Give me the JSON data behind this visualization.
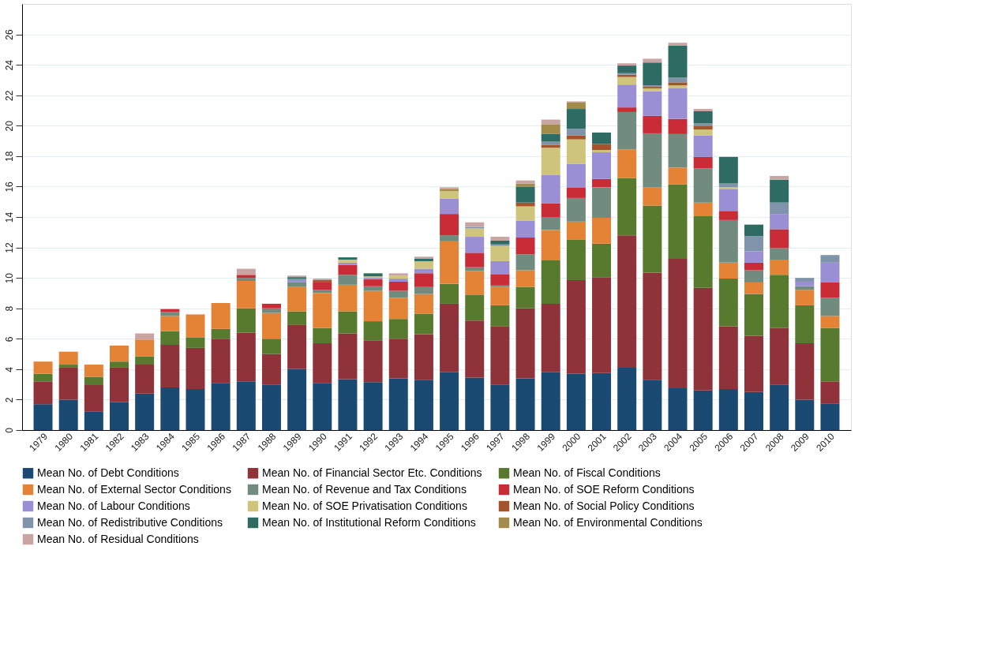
{
  "chart_data": {
    "type": "bar",
    "stacked": true,
    "grid": "y",
    "legend": "bottom",
    "categories": [
      "1979",
      "1980",
      "1981",
      "1982",
      "1983",
      "1984",
      "1985",
      "1986",
      "1987",
      "1988",
      "1989",
      "1990",
      "1991",
      "1992",
      "1993",
      "1994",
      "1995",
      "1996",
      "1997",
      "1998",
      "1999",
      "2000",
      "2001",
      "2002",
      "2003",
      "2004",
      "2005",
      "2006",
      "2007",
      "2008",
      "2009",
      "2010"
    ],
    "ylim": [
      0,
      28
    ],
    "yticks": [
      0,
      2,
      4,
      6,
      8,
      10,
      12,
      14,
      16,
      18,
      20,
      22,
      24,
      26
    ],
    "series": [
      {
        "name": "Mean No. of Debt Conditions",
        "color": "#1a4a72",
        "values": [
          1.7,
          2.0,
          1.2,
          1.85,
          2.4,
          2.8,
          2.7,
          3.1,
          3.2,
          3.0,
          4.0,
          3.1,
          3.35,
          3.15,
          3.4,
          3.3,
          3.8,
          3.45,
          3.0,
          3.4,
          3.8,
          3.7,
          3.75,
          4.1,
          3.3,
          2.75,
          2.6,
          2.7,
          2.5,
          3.0,
          2.0,
          1.75
        ]
      },
      {
        "name": "Mean No. of Financial Sector Etc. Conditions",
        "color": "#8f323a",
        "values": [
          1.5,
          2.1,
          1.8,
          2.25,
          1.9,
          2.8,
          2.7,
          2.9,
          3.2,
          2.0,
          2.9,
          2.6,
          3.0,
          2.75,
          2.6,
          3.0,
          4.5,
          3.75,
          3.8,
          4.6,
          4.5,
          6.15,
          6.3,
          8.7,
          7.05,
          8.5,
          6.75,
          4.1,
          3.7,
          3.7,
          3.7,
          1.45
        ]
      },
      {
        "name": "Mean No. of Fiscal Conditions",
        "color": "#587a2e",
        "values": [
          0.5,
          0.2,
          0.5,
          0.4,
          0.55,
          0.9,
          0.7,
          0.65,
          1.6,
          1.0,
          0.9,
          1.0,
          1.45,
          1.25,
          1.3,
          1.35,
          1.3,
          1.7,
          1.4,
          1.4,
          2.85,
          2.65,
          2.2,
          3.75,
          4.4,
          4.9,
          4.7,
          3.15,
          2.75,
          3.5,
          2.5,
          3.5
        ]
      },
      {
        "name": "Mean No. of External Sector Conditions",
        "color": "#e48236",
        "values": [
          0.8,
          0.85,
          0.8,
          1.05,
          1.1,
          1.0,
          1.5,
          1.7,
          1.8,
          1.7,
          1.6,
          2.3,
          1.75,
          2.0,
          1.4,
          1.3,
          2.8,
          1.55,
          1.2,
          1.1,
          2.0,
          1.2,
          1.7,
          1.9,
          1.2,
          1.1,
          0.9,
          1.05,
          0.75,
          1.0,
          1.0,
          0.8
        ]
      },
      {
        "name": "Mean No. of Revenue and Tax Conditions",
        "color": "#718c7f",
        "values": [
          null,
          null,
          null,
          null,
          null,
          0.25,
          null,
          null,
          0.2,
          0.3,
          0.3,
          0.2,
          0.65,
          0.3,
          0.45,
          0.45,
          0.4,
          0.25,
          0.1,
          1.05,
          0.85,
          1.55,
          2.0,
          2.45,
          3.55,
          2.2,
          2.25,
          2.8,
          0.8,
          0.75,
          0.25,
          1.2
        ]
      },
      {
        "name": "Mean No. of SOE Reform Conditions",
        "color": "#c92b37",
        "values": [
          null,
          null,
          null,
          null,
          null,
          0.2,
          null,
          null,
          0.2,
          0.3,
          null,
          0.5,
          0.65,
          0.45,
          0.6,
          0.9,
          1.4,
          0.95,
          0.75,
          1.1,
          0.9,
          0.7,
          0.55,
          0.3,
          1.15,
          1.0,
          0.75,
          0.6,
          0.5,
          1.25,
          null,
          1.0
        ]
      },
      {
        "name": "Mean No. of Labour Conditions",
        "color": "#9a8fd4",
        "values": [
          null,
          null,
          null,
          null,
          null,
          null,
          null,
          null,
          null,
          null,
          0.15,
          null,
          0.15,
          0.1,
          0.2,
          0.3,
          1.0,
          1.05,
          0.85,
          1.1,
          1.85,
          1.55,
          1.75,
          1.5,
          1.6,
          2.0,
          1.4,
          1.45,
          0.75,
          1.0,
          0.3,
          1.3
        ]
      },
      {
        "name": "Mean No. of SOE Privatisation Conditions",
        "color": "#cfc47c",
        "values": [
          null,
          null,
          null,
          null,
          null,
          null,
          null,
          null,
          null,
          null,
          null,
          null,
          0.2,
          0.1,
          0.2,
          0.5,
          0.5,
          0.55,
          1.0,
          0.95,
          1.8,
          1.6,
          0.15,
          0.5,
          0.2,
          0.2,
          0.4,
          0.1,
          null,
          null,
          null,
          null
        ]
      },
      {
        "name": "Mean No. of Social Policy Conditions",
        "color": "#a5532a",
        "values": [
          null,
          null,
          null,
          null,
          null,
          null,
          null,
          null,
          null,
          null,
          null,
          0.15,
          null,
          null,
          null,
          null,
          null,
          null,
          null,
          0.25,
          0.2,
          0.25,
          0.4,
          0.15,
          0.1,
          0.2,
          0.25,
          null,
          null,
          null,
          null,
          null
        ]
      },
      {
        "name": "Mean No. of Redistributive Conditions",
        "color": "#7f93aa",
        "values": [
          null,
          null,
          null,
          null,
          null,
          null,
          null,
          null,
          null,
          null,
          0.1,
          null,
          null,
          null,
          null,
          null,
          null,
          0.1,
          0.1,
          null,
          0.2,
          0.45,
          null,
          0.1,
          0.1,
          0.3,
          0.15,
          0.25,
          1.0,
          0.75,
          0.25,
          0.5
        ]
      },
      {
        "name": "Mean No. of Institutional Reform Conditions",
        "color": "#2e6b63",
        "values": [
          null,
          null,
          null,
          null,
          null,
          null,
          null,
          null,
          null,
          null,
          0.1,
          null,
          0.15,
          0.2,
          null,
          0.15,
          null,
          null,
          0.25,
          1.05,
          0.5,
          1.3,
          0.75,
          0.5,
          1.5,
          2.1,
          0.8,
          1.75,
          0.75,
          1.5,
          null,
          null
        ]
      },
      {
        "name": "Mean No. of Environmental Conditions",
        "color": "#a38c4a",
        "values": [
          null,
          null,
          null,
          null,
          null,
          null,
          null,
          null,
          null,
          null,
          null,
          null,
          null,
          null,
          null,
          null,
          0.15,
          null,
          null,
          0.2,
          0.65,
          0.45,
          null,
          null,
          null,
          null,
          null,
          null,
          null,
          null,
          null,
          null
        ]
      },
      {
        "name": "Mean No. of Residual Conditions",
        "color": "#c8a4a2",
        "values": [
          null,
          null,
          null,
          null,
          0.4,
          null,
          null,
          null,
          0.4,
          null,
          0.1,
          0.1,
          null,
          null,
          0.15,
          0.15,
          0.1,
          0.3,
          0.25,
          0.2,
          0.3,
          0.05,
          null,
          0.15,
          0.25,
          0.2,
          0.15,
          null,
          null,
          0.25,
          null,
          null
        ]
      }
    ]
  }
}
